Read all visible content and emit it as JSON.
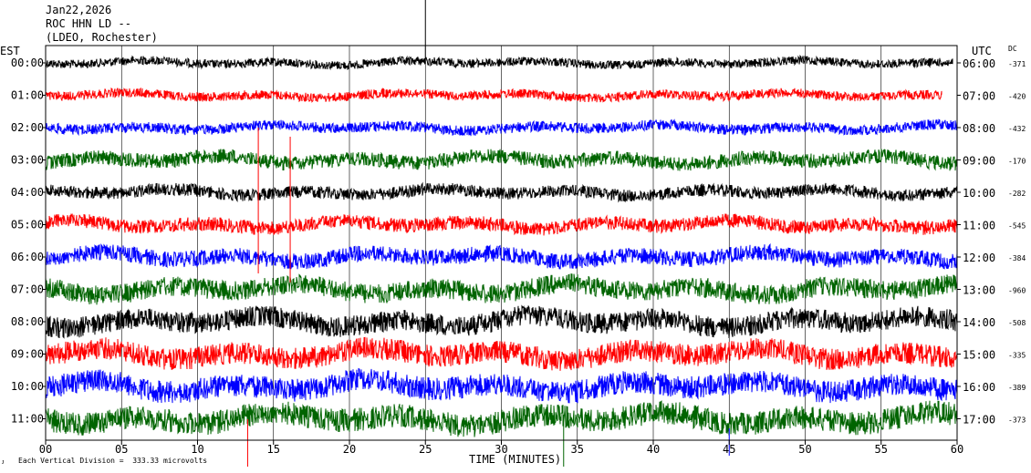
{
  "header": {
    "line1": "Jan22,2026",
    "line2": "ROC HHN LD --",
    "line3": "(LDEO, Rochester)"
  },
  "left_axis_label": "EST",
  "right_axis_label": "UTC",
  "dc_label": "DC",
  "footer_note": "Each Vertical Division =  333.33 microvolts",
  "colors": {
    "black": "#000000",
    "red": "#ff0000",
    "blue": "#0000ff",
    "green": "#006400"
  },
  "chart_data": {
    "type": "line",
    "subtype": "seismogram-helicorder",
    "xlabel": "TIME (MINUTES)",
    "xlim": [
      0,
      60
    ],
    "x_ticks": [
      "00",
      "05",
      "10",
      "15",
      "20",
      "25",
      "30",
      "35",
      "40",
      "45",
      "50",
      "55",
      "60"
    ],
    "x_tick_values": [
      0,
      5,
      10,
      15,
      20,
      25,
      30,
      35,
      40,
      45,
      50,
      55,
      60
    ],
    "grid": "vertical lines every 5 minutes",
    "rows": [
      {
        "est": "00:00",
        "utc": "06:00",
        "dc": "-371",
        "color": "black",
        "amplitude": 0.3
      },
      {
        "est": "01:00",
        "utc": "07:00",
        "dc": "-420",
        "color": "red",
        "amplitude": 0.32
      },
      {
        "est": "02:00",
        "utc": "08:00",
        "dc": "-432",
        "color": "blue",
        "amplitude": 0.36
      },
      {
        "est": "03:00",
        "utc": "09:00",
        "dc": "-170",
        "color": "green",
        "amplitude": 0.5
      },
      {
        "est": "04:00",
        "utc": "10:00",
        "dc": "-282",
        "color": "black",
        "amplitude": 0.42
      },
      {
        "est": "05:00",
        "utc": "11:00",
        "dc": "-545",
        "color": "red",
        "amplitude": 0.48
      },
      {
        "est": "06:00",
        "utc": "12:00",
        "dc": "-384",
        "color": "blue",
        "amplitude": 0.55
      },
      {
        "est": "07:00",
        "utc": "13:00",
        "dc": "-960",
        "color": "green",
        "amplitude": 0.68
      },
      {
        "est": "08:00",
        "utc": "14:00",
        "dc": "-508",
        "color": "black",
        "amplitude": 0.72
      },
      {
        "est": "09:00",
        "utc": "15:00",
        "dc": "-335",
        "color": "red",
        "amplitude": 0.75
      },
      {
        "est": "10:00",
        "utc": "16:00",
        "dc": "-389",
        "color": "blue",
        "amplitude": 0.78
      },
      {
        "est": "11:00",
        "utc": "17:00",
        "dc": "-373",
        "color": "green",
        "amplitude": 0.8
      }
    ]
  }
}
